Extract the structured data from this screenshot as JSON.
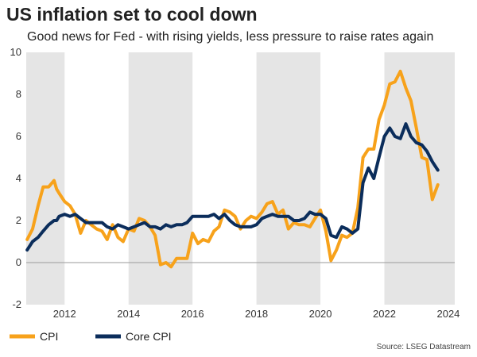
{
  "header": {
    "title": "US inflation set to cool down",
    "subtitle": "Good news for Fed - with rising yields, less pressure to raise rates again"
  },
  "footer": {
    "source": "Source: LSEG Datastream"
  },
  "colors": {
    "cpi": "#F7A21B",
    "core": "#0B2D5B",
    "band": "#E5E5E5",
    "zero": "#9A9A9A"
  },
  "chart_data": {
    "type": "line",
    "title": "US inflation set to cool down",
    "xlim": [
      2010.8,
      2024.2
    ],
    "ylim": [
      -2,
      10
    ],
    "x_ticks": [
      2012,
      2014,
      2016,
      2018,
      2020,
      2022,
      2024
    ],
    "x_tick_labels": [
      "2012",
      "2014",
      "2016",
      "2018",
      "2020",
      "2022",
      "2024"
    ],
    "y_ticks": [
      -2,
      0,
      2,
      4,
      6,
      8,
      10
    ],
    "y_tick_labels": [
      "-2",
      "0",
      "2",
      "4",
      "6",
      "8",
      "10"
    ],
    "shaded_bands": [
      [
        2010.8,
        2012.0
      ],
      [
        2014.0,
        2016.0
      ],
      [
        2018.0,
        2020.0
      ],
      [
        2022.0,
        2024.2
      ]
    ],
    "legend": [
      "CPI",
      "Core CPI"
    ],
    "series": [
      {
        "name": "CPI",
        "x": [
          2010.83,
          2011.0,
          2011.17,
          2011.33,
          2011.5,
          2011.67,
          2011.75,
          2011.83,
          2012.0,
          2012.17,
          2012.33,
          2012.5,
          2012.67,
          2012.83,
          2013.0,
          2013.17,
          2013.33,
          2013.5,
          2013.67,
          2013.83,
          2014.0,
          2014.17,
          2014.33,
          2014.5,
          2014.67,
          2014.83,
          2015.0,
          2015.17,
          2015.33,
          2015.5,
          2015.67,
          2015.83,
          2016.0,
          2016.17,
          2016.33,
          2016.5,
          2016.67,
          2016.83,
          2017.0,
          2017.17,
          2017.33,
          2017.5,
          2017.67,
          2017.83,
          2018.0,
          2018.17,
          2018.33,
          2018.5,
          2018.67,
          2018.83,
          2019.0,
          2019.17,
          2019.33,
          2019.5,
          2019.67,
          2019.83,
          2020.0,
          2020.17,
          2020.33,
          2020.5,
          2020.67,
          2020.83,
          2021.0,
          2021.17,
          2021.33,
          2021.5,
          2021.67,
          2021.83,
          2022.0,
          2022.17,
          2022.33,
          2022.5,
          2022.67,
          2022.83,
          2023.0,
          2023.17,
          2023.33,
          2023.5,
          2023.67
        ],
        "y": [
          1.1,
          1.6,
          2.7,
          3.6,
          3.6,
          3.9,
          3.5,
          3.3,
          2.9,
          2.7,
          2.3,
          1.4,
          2.0,
          1.8,
          1.6,
          1.5,
          1.1,
          1.8,
          1.2,
          1.0,
          1.6,
          1.5,
          2.1,
          2.0,
          1.7,
          1.3,
          -0.1,
          0.0,
          -0.2,
          0.2,
          0.2,
          0.2,
          1.4,
          0.9,
          1.1,
          1.0,
          1.5,
          1.7,
          2.5,
          2.4,
          2.2,
          1.6,
          2.0,
          2.2,
          2.1,
          2.4,
          2.8,
          2.9,
          2.3,
          2.5,
          1.6,
          1.9,
          1.8,
          1.8,
          1.7,
          2.1,
          2.5,
          1.5,
          0.1,
          0.6,
          1.3,
          1.2,
          1.4,
          2.6,
          5.0,
          5.4,
          5.4,
          6.8,
          7.5,
          8.5,
          8.6,
          9.1,
          8.3,
          7.7,
          6.4,
          5.0,
          4.9,
          3.0,
          3.7
        ]
      },
      {
        "name": "Core CPI",
        "x": [
          2010.83,
          2011.0,
          2011.17,
          2011.33,
          2011.5,
          2011.67,
          2011.75,
          2011.83,
          2012.0,
          2012.17,
          2012.33,
          2012.5,
          2012.67,
          2012.83,
          2013.0,
          2013.17,
          2013.33,
          2013.5,
          2013.67,
          2013.83,
          2014.0,
          2014.17,
          2014.33,
          2014.5,
          2014.67,
          2014.83,
          2015.0,
          2015.17,
          2015.33,
          2015.5,
          2015.67,
          2015.83,
          2016.0,
          2016.17,
          2016.33,
          2016.5,
          2016.67,
          2016.83,
          2017.0,
          2017.17,
          2017.33,
          2017.5,
          2017.67,
          2017.83,
          2018.0,
          2018.17,
          2018.33,
          2018.5,
          2018.67,
          2018.83,
          2019.0,
          2019.17,
          2019.33,
          2019.5,
          2019.67,
          2019.83,
          2020.0,
          2020.17,
          2020.33,
          2020.5,
          2020.67,
          2020.83,
          2021.0,
          2021.17,
          2021.33,
          2021.5,
          2021.67,
          2021.83,
          2022.0,
          2022.17,
          2022.33,
          2022.5,
          2022.67,
          2022.83,
          2023.0,
          2023.17,
          2023.33,
          2023.5,
          2023.67
        ],
        "y": [
          0.6,
          1.0,
          1.2,
          1.5,
          1.8,
          2.0,
          2.0,
          2.2,
          2.3,
          2.2,
          2.3,
          2.1,
          1.9,
          1.9,
          1.9,
          1.9,
          1.7,
          1.6,
          1.8,
          1.7,
          1.6,
          1.7,
          1.8,
          1.9,
          1.7,
          1.7,
          1.6,
          1.8,
          1.7,
          1.8,
          1.8,
          1.9,
          2.2,
          2.2,
          2.2,
          2.2,
          2.3,
          2.1,
          2.3,
          2.0,
          1.8,
          1.7,
          1.7,
          1.7,
          1.8,
          2.1,
          2.2,
          2.3,
          2.2,
          2.2,
          2.2,
          2.0,
          2.0,
          2.1,
          2.4,
          2.3,
          2.3,
          2.1,
          1.3,
          1.2,
          1.7,
          1.6,
          1.4,
          1.6,
          3.8,
          4.5,
          4.0,
          5.0,
          6.0,
          6.4,
          6.0,
          5.9,
          6.6,
          6.0,
          5.7,
          5.6,
          5.3,
          4.8,
          4.4
        ]
      }
    ]
  }
}
